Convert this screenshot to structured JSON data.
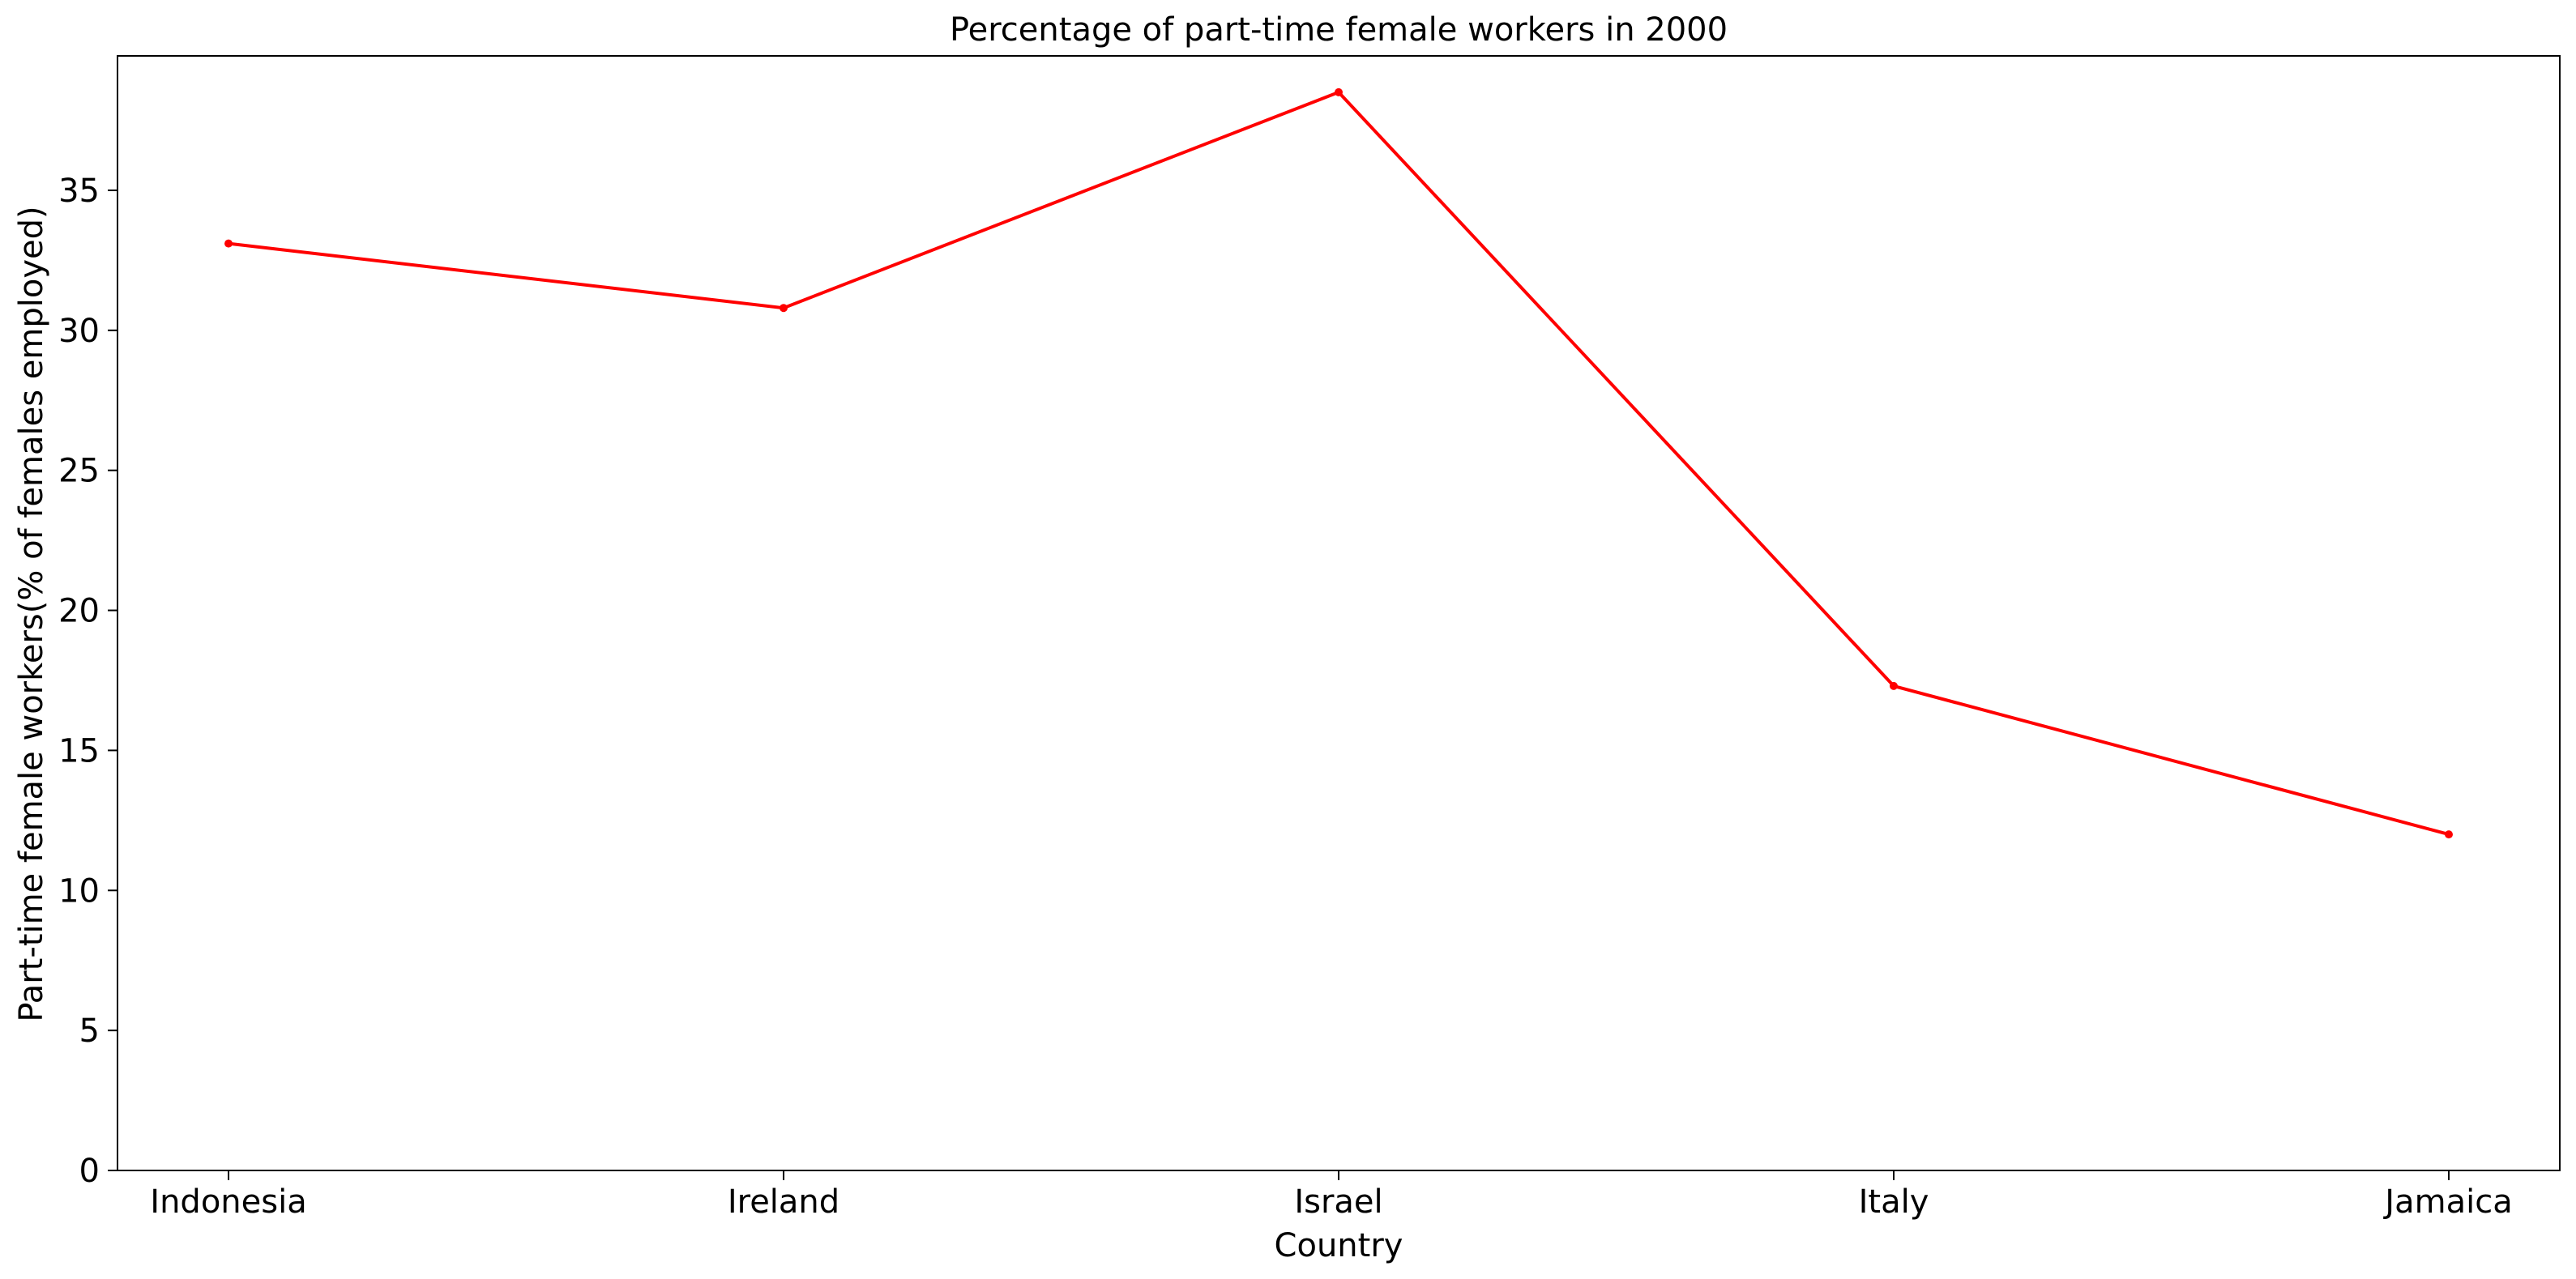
{
  "chart_data": {
    "type": "line",
    "title": "Percentage of part-time female workers in 2000",
    "xlabel": "Country",
    "ylabel": "Part-time female workers(% of females employed)",
    "categories": [
      "Indonesia",
      "Ireland",
      "Israel",
      "Italy",
      "Jamaica"
    ],
    "series": [
      {
        "values": [
          33.1,
          30.8,
          38.5,
          17.3,
          12.0
        ],
        "color": "#ff0000",
        "marker": "circle"
      }
    ],
    "ylim": [
      0,
      39.8
    ],
    "yticks": [
      0,
      5,
      10,
      15,
      20,
      25,
      30,
      35
    ],
    "grid": false,
    "legend": "none"
  }
}
